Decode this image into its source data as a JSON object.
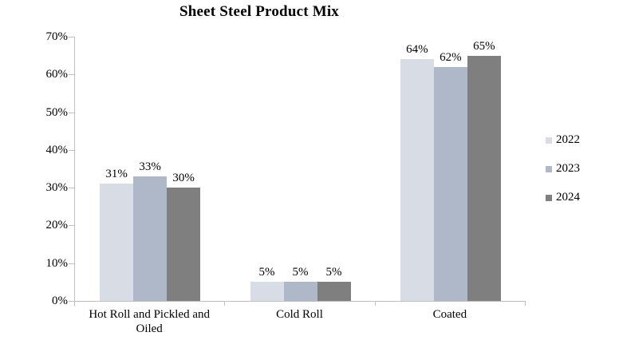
{
  "title": "Sheet Steel Product Mix",
  "chart_data": {
    "type": "bar",
    "title": "Sheet Steel Product Mix",
    "categories": [
      "Hot Roll and Pickled and Oiled",
      "Cold Roll",
      "Coated"
    ],
    "series": [
      {
        "name": "2022",
        "color": "#d7dce5",
        "values": [
          31,
          5,
          64
        ]
      },
      {
        "name": "2023",
        "color": "#aeb8c8",
        "values": [
          33,
          5,
          62
        ]
      },
      {
        "name": "2024",
        "color": "#7f7f7f",
        "values": [
          30,
          5,
          65
        ]
      }
    ],
    "data_labels": [
      "31%",
      "33%",
      "30%",
      "5%",
      "5%",
      "5%",
      "64%",
      "62%",
      "65%"
    ],
    "data_label_suffix": "%",
    "y_ticks": [
      "0%",
      "10%",
      "20%",
      "30%",
      "40%",
      "50%",
      "60%",
      "70%"
    ],
    "ylim": [
      0,
      70
    ],
    "xlabel": "",
    "ylabel": "",
    "grid": false,
    "legend_position": "right",
    "axis_color": "#bfbfbf",
    "text_color": "#000000",
    "background_color": "#ffffff"
  }
}
